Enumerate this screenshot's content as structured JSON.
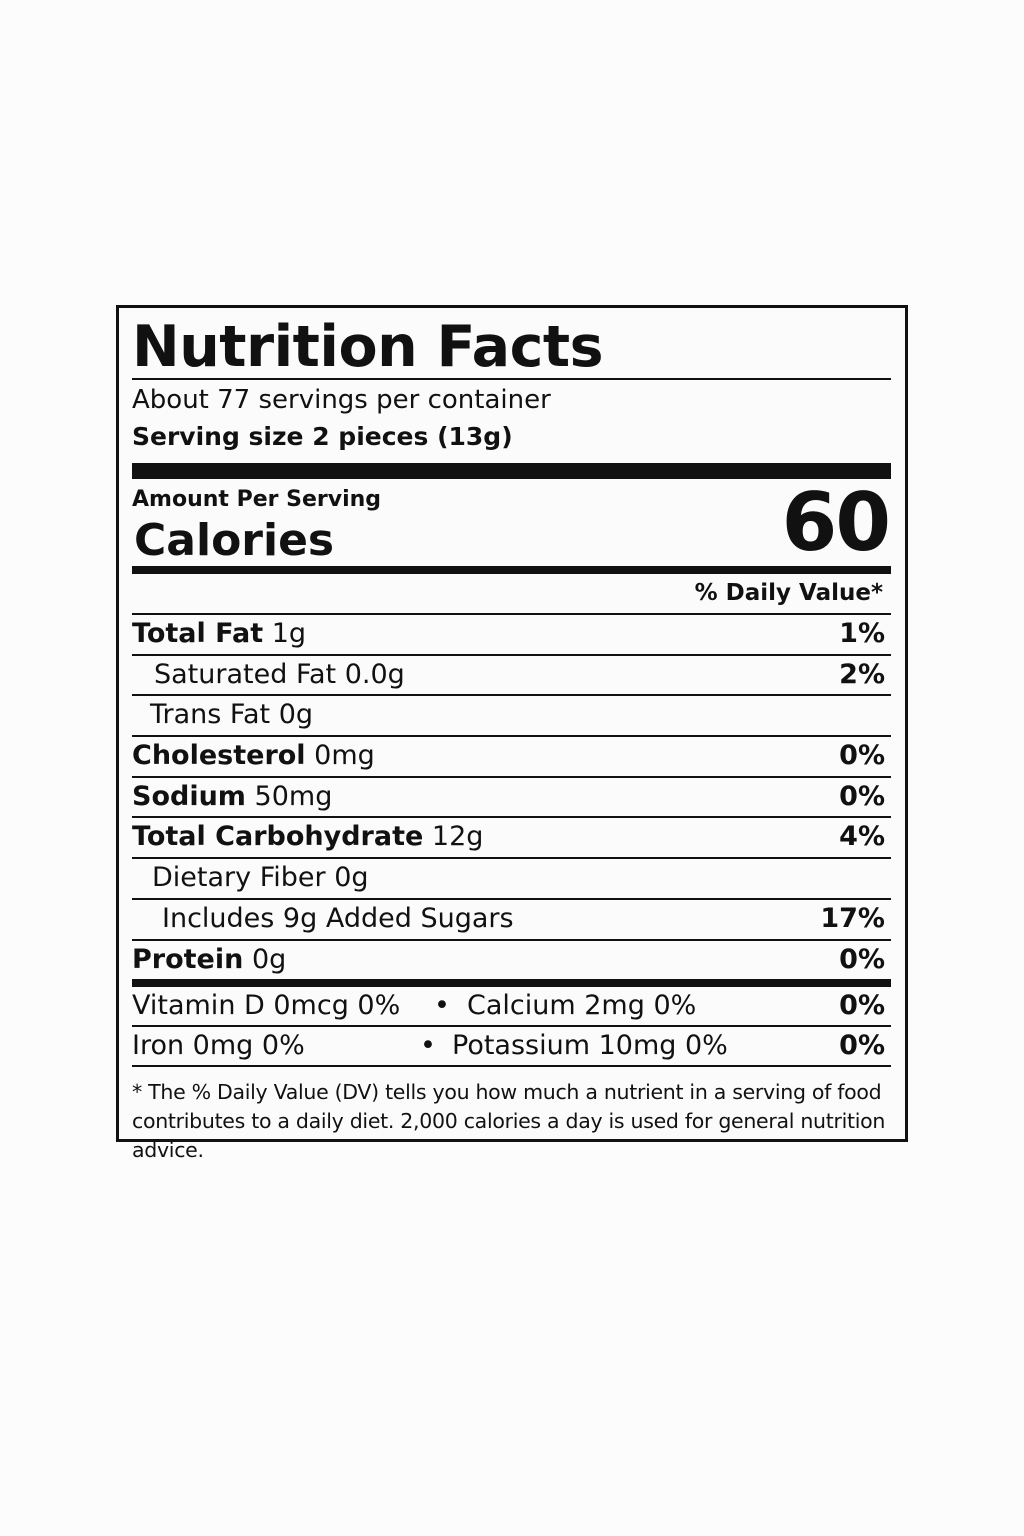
{
  "title": "Nutrition Facts",
  "servings": "About 77 servings per container",
  "serving_size": "Serving size 2 pieces (13g)",
  "amount_per_serving": "Amount Per Serving",
  "calories_label": "Calories",
  "calories": "60",
  "daily_value_header": "% Daily Value*",
  "nutrients": [
    {
      "name": "Total Fat",
      "amount": "1g",
      "dv": "1%"
    },
    {
      "name": "Saturated Fat 0.0g",
      "dv": "2%"
    },
    {
      "name": "Trans Fat 0g"
    },
    {
      "name": "Cholesterol",
      "amount": "0mg",
      "dv": "0%"
    },
    {
      "name": "Sodium",
      "amount": "50mg",
      "dv": "0%"
    },
    {
      "name": "Total Carbohydrate",
      "amount": "12g",
      "dv": "4%"
    },
    {
      "name": "Dietary Fiber 0g"
    },
    {
      "name": "Includes 9g Added Sugars",
      "dv": "17%"
    },
    {
      "name": "Protein",
      "amount": "0g",
      "dv": "0%"
    }
  ],
  "vitamins": [
    {
      "left": "Vitamin D 0mcg 0%",
      "bullet": "•",
      "right": "Calcium 2mg  0%",
      "dv": "0%"
    },
    {
      "left": "Iron 0mg 0%",
      "bullet": "•",
      "right": "Potassium 10mg 0%",
      "dv": "0%"
    }
  ],
  "footnote": "* The % Daily Value (DV) tells you how much a nutrient in a serving of food contributes to a daily diet. 2,000 calories a day is used for general nutrition advice."
}
